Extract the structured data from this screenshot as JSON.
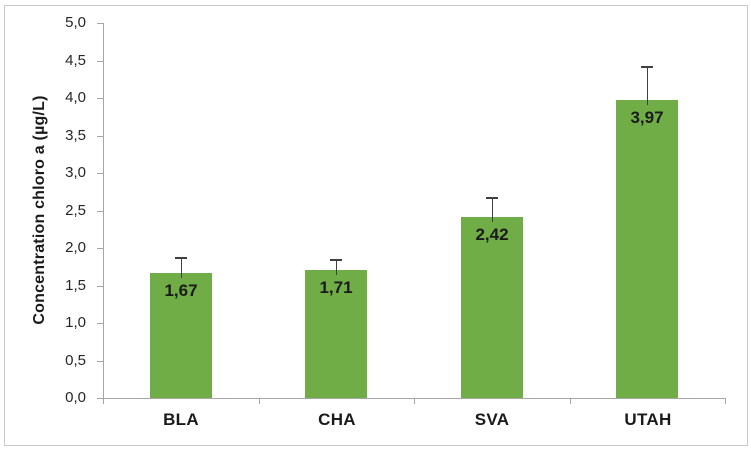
{
  "chart_data": {
    "type": "bar",
    "title": "",
    "xlabel": "",
    "ylabel": "Concentration chloro a (µg/L)",
    "categories": [
      "BLA",
      "CHA",
      "SVA",
      "UTAH"
    ],
    "values": [
      1.67,
      1.71,
      2.42,
      3.97
    ],
    "value_labels": [
      "1,67",
      "1,71",
      "2,42",
      "3,97"
    ],
    "error_plus": [
      0.2,
      0.13,
      0.25,
      0.45
    ],
    "ylim": [
      0,
      5
    ],
    "ytick_step": 0.5,
    "ytick_labels": [
      "0,0",
      "0,5",
      "1,0",
      "1,5",
      "2,0",
      "2,5",
      "3,0",
      "3,5",
      "4,0",
      "4,5",
      "5,0"
    ],
    "grid": false,
    "legend": null,
    "decimal_separator": ",",
    "colors": {
      "bar": "#70AD47",
      "axis": "#A6A6A6",
      "error_bar": "#404040",
      "frame_border": "#C9C9C9",
      "text": "#1A1A1A",
      "tick_text": "#262626",
      "background": "#FFFFFF"
    }
  }
}
